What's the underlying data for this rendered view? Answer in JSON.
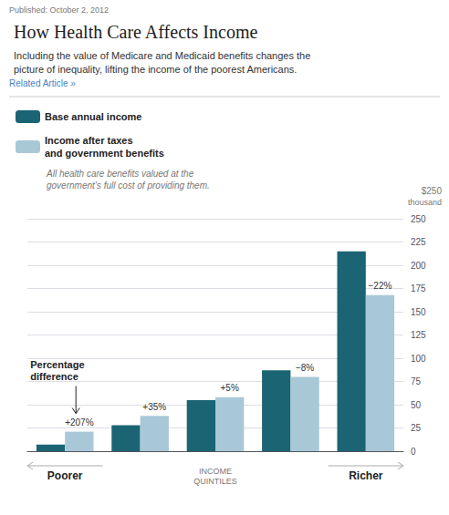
{
  "chart_data": {
    "type": "bar",
    "title": "How Health Care Affects Income",
    "subtitle": "Including the value of Medicare and Medicaid benefits changes the\npicture of inequality, lifting the income of the poorest Americans.",
    "categories": [
      null,
      null,
      null,
      null,
      null
    ],
    "series": [
      {
        "name": "Base annual income",
        "color": "#1a6474",
        "values": [
          7,
          28,
          55,
          87,
          215
        ]
      },
      {
        "name": "Income after taxes\nand government benefits",
        "color": "#a8c8d8",
        "values": [
          21,
          38,
          58,
          80,
          168
        ],
        "annotations": [
          "+207%",
          "+35%",
          "+5%",
          "−8%",
          "−22%"
        ]
      }
    ],
    "ylim": [
      0,
      250
    ],
    "yticks": [
      0,
      25,
      50,
      75,
      100,
      125,
      150,
      175,
      200,
      225,
      250
    ],
    "grid": true,
    "legend": "upper left",
    "tick_labels": "y",
    "x_label": "INCOME\nQUINTILES",
    "annotations": [
      "Published: October 2, 2012",
      "Related Article »",
      "All health care benefits valued at the\ngovernment’s full cost of providing them.",
      "Percentage\ndifference",
      "Poorer",
      "Richer",
      "$250",
      "thousand"
    ]
  }
}
